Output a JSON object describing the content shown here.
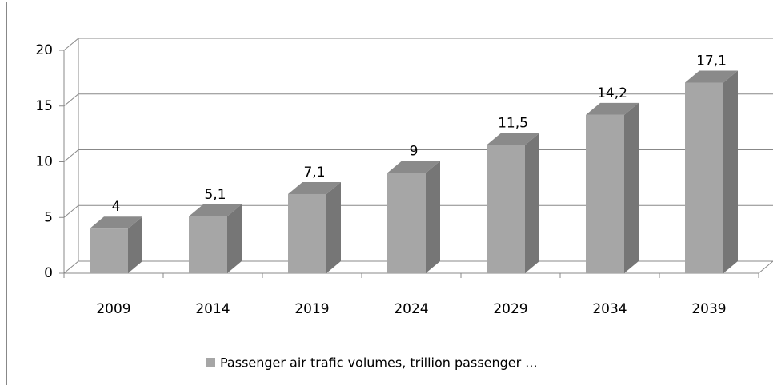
{
  "chart_data": {
    "type": "bar3d",
    "categories": [
      "2009",
      "2014",
      "2019",
      "2024",
      "2029",
      "2034",
      "2039"
    ],
    "series": [
      {
        "name": "Passenger air trafic volumes, trillion passenger ...",
        "color": "#a6a6a6",
        "values": [
          4,
          5.1,
          7.1,
          9,
          11.5,
          14.2,
          17.1
        ],
        "value_labels": [
          "4",
          "5,1",
          "7,1",
          "9",
          "11,5",
          "14,2",
          "17,1"
        ]
      }
    ],
    "ylim": [
      0,
      20
    ],
    "yticks": [
      0,
      5,
      10,
      15,
      20
    ],
    "grid": true,
    "legend": "bottom"
  }
}
